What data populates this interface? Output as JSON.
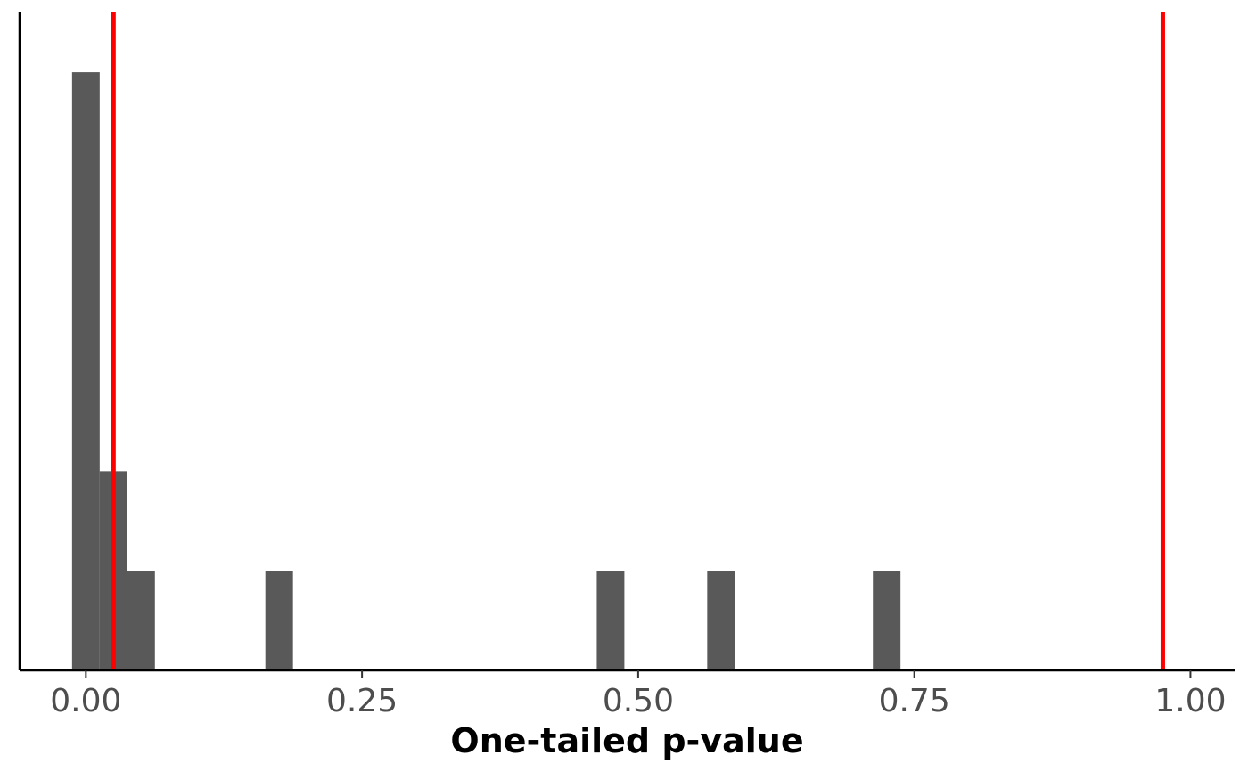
{
  "chart_data": {
    "type": "bar",
    "subtype": "histogram",
    "title": "",
    "xlabel": "One-tailed p-value",
    "ylabel": "",
    "xlim": [
      -0.06,
      1.04
    ],
    "ylim": [
      0,
      6.6
    ],
    "x_ticks": [
      0.0,
      0.25,
      0.5,
      0.75,
      1.0
    ],
    "x_tick_labels": [
      "0.00",
      "0.25",
      "0.50",
      "0.75",
      "1.00"
    ],
    "bin_width": 0.025,
    "bins": [
      {
        "x_start": -0.0125,
        "x_end": 0.0125,
        "count": 6
      },
      {
        "x_start": 0.0125,
        "x_end": 0.0375,
        "count": 2
      },
      {
        "x_start": 0.0375,
        "x_end": 0.0625,
        "count": 1
      },
      {
        "x_start": 0.1625,
        "x_end": 0.1875,
        "count": 1
      },
      {
        "x_start": 0.4625,
        "x_end": 0.4875,
        "count": 1
      },
      {
        "x_start": 0.5625,
        "x_end": 0.5875,
        "count": 1
      },
      {
        "x_start": 0.7125,
        "x_end": 0.7375,
        "count": 1
      }
    ],
    "reference_lines": [
      {
        "x": 0.025,
        "color": "#ff0000"
      },
      {
        "x": 0.975,
        "color": "#ff0000"
      }
    ],
    "bar_color": "#595959",
    "axis_color": "#000000",
    "grid": false,
    "legend": "none"
  }
}
